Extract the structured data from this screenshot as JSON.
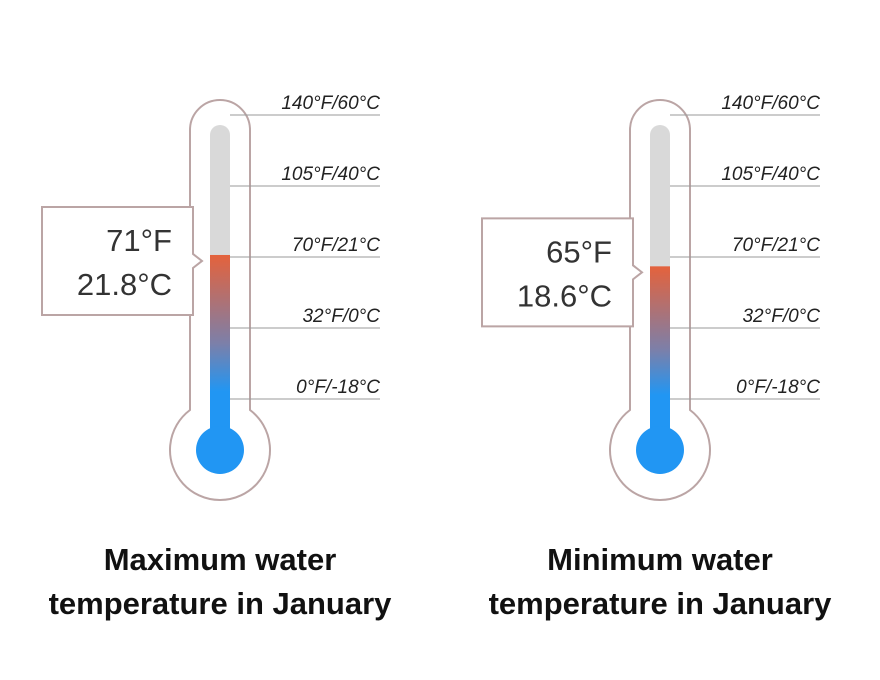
{
  "chart_data": [
    {
      "type": "thermometer",
      "title": "Maximum water temperature in January",
      "values": [
        71,
        21.8
      ],
      "value_labels": [
        "71°F",
        "21.8°C"
      ],
      "yticks": [
        {
          "value": 140,
          "label": "140°F/60°C"
        },
        {
          "value": 105,
          "label": "105°F/40°C"
        },
        {
          "value": 70,
          "label": "70°F/21°C"
        },
        {
          "value": 32,
          "label": "32°F/0°C"
        },
        {
          "value": 0,
          "label": "0°F/-18°C"
        }
      ],
      "color": "#2196f3"
    },
    {
      "type": "thermometer",
      "title": "Minimum water temperature in January",
      "values": [
        65,
        18.6
      ],
      "value_labels": [
        "65°F",
        "18.6°C"
      ],
      "yticks": [
        {
          "value": 140,
          "label": "140°F/60°C"
        },
        {
          "value": 105,
          "label": "105°F/40°C"
        },
        {
          "value": 70,
          "label": "70°F/21°C"
        },
        {
          "value": 32,
          "label": "32°F/0°C"
        },
        {
          "value": 0,
          "label": "0°F/-18°C"
        }
      ],
      "color": "#2196f3"
    }
  ]
}
